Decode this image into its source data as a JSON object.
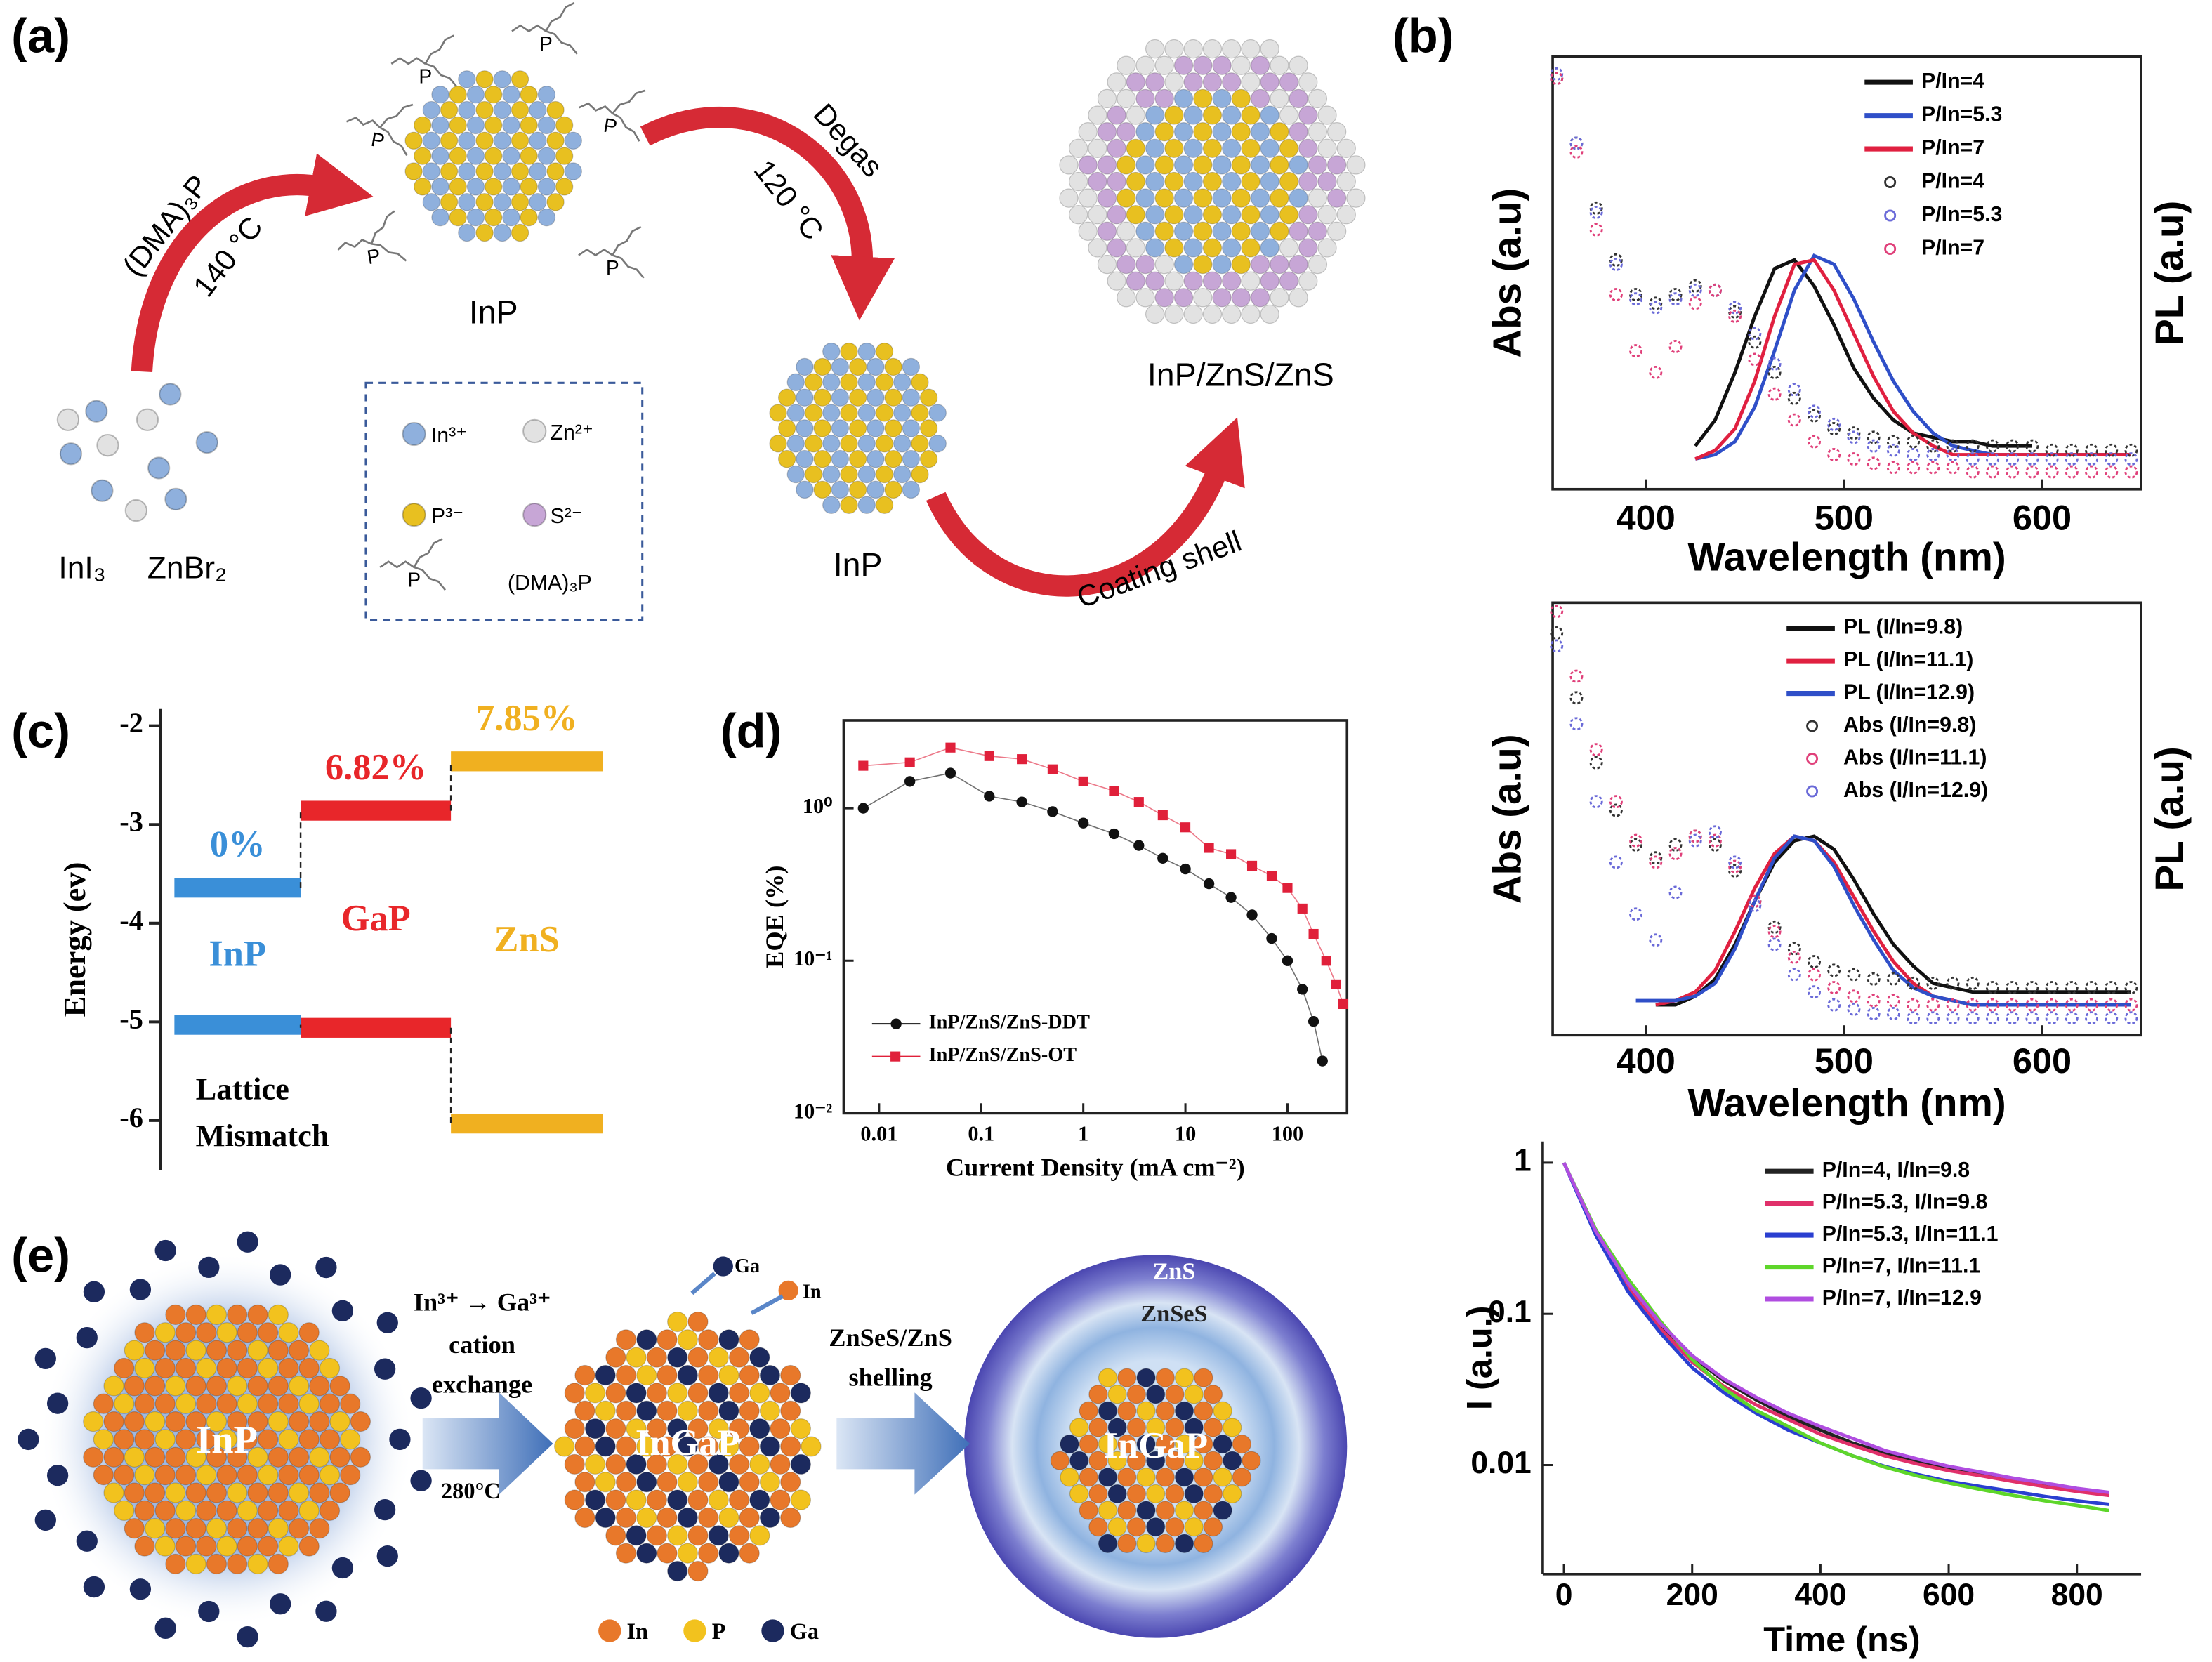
{
  "panels": {
    "a": "(a)",
    "b": "(b)",
    "c": "(c)",
    "d": "(d)",
    "e": "(e)"
  },
  "diagram_a": {
    "precursors": [
      "InI₃",
      "ZnBr₂"
    ],
    "reagent": "(DMA)₃P",
    "temperature_1": "140 °C",
    "core_label": "InP",
    "ligand": "P",
    "process": "Degas",
    "temperature_2": "120 °C",
    "purified_label": "InP",
    "step_3": "Coating shell",
    "product": "InP/ZnS/ZnS",
    "legend": [
      "In³⁺",
      "Zn²⁺",
      "P³⁻",
      "S²⁻",
      "(DMA)₃P"
    ]
  },
  "diagram_e": {
    "core": "InP",
    "step_1": [
      "In³⁺ → Ga³⁺",
      "cation",
      "exchange"
    ],
    "temperature": "280°C",
    "ions": [
      "Ga",
      "In"
    ],
    "alloy": "InGaP",
    "step_2": [
      "ZnSeS/ZnS",
      "shelling"
    ],
    "shells": [
      "ZnS",
      "ZnSeS"
    ],
    "product_core": "InGaP",
    "legend": [
      "In",
      "P",
      "Ga"
    ]
  },
  "chart_data": [
    {
      "type": "level",
      "y_label": "Energy (ev)",
      "ylim": [
        -6.5,
        -1.83
      ],
      "yticks": [
        -2,
        -3,
        -4,
        -5,
        -6
      ],
      "categories": [
        "InP",
        "GaP",
        "ZnS"
      ],
      "colors": [
        "#3a8fd8",
        "#e8262a",
        "#f0b020"
      ],
      "series": [
        {
          "values": [
            -3.64,
            -2.86,
            -2.36
          ]
        },
        {
          "values": [
            -5.03,
            -5.06,
            -6.03
          ]
        }
      ],
      "lattice_mismatch": [
        0,
        6.82,
        7.85
      ],
      "value_labels": [
        "0%",
        "6.82%",
        "7.85%"
      ],
      "annotation": [
        "Lattice",
        "Mismatch"
      ]
    },
    {
      "type": "scatter",
      "xlog": true,
      "ylog": true,
      "x_label": "Current Density (mA cm⁻²)",
      "y_label": "EQE (%)",
      "xlim": [
        0.0045,
        383
      ],
      "ylim": [
        0.01,
        3.77
      ],
      "xticks": [
        0.01,
        0.1,
        1,
        10,
        100
      ],
      "yticks": [
        {
          "value": 0.01,
          "label": "10⁻²"
        },
        {
          "value": 0.1,
          "label": "10⁻¹"
        },
        {
          "value": 1,
          "label": "10⁰"
        }
      ],
      "legend": "lower left",
      "series": [
        {
          "name": "InP/ZnS/ZnS-DDT",
          "color": "#111111",
          "marker": "circle",
          "x": [
            0.007,
            0.02,
            0.05,
            0.12,
            0.25,
            0.5,
            1,
            2,
            3.5,
            6,
            10,
            17,
            28,
            45,
            70,
            100,
            140,
            180,
            220
          ],
          "values": [
            1.0,
            1.5,
            1.7,
            1.2,
            1.1,
            0.95,
            0.8,
            0.68,
            0.57,
            0.47,
            0.4,
            0.32,
            0.26,
            0.2,
            0.14,
            0.1,
            0.065,
            0.04,
            0.022
          ]
        },
        {
          "name": "InP/ZnS/ZnS-OT",
          "color": "#e0203a",
          "marker": "square",
          "x": [
            0.007,
            0.02,
            0.05,
            0.12,
            0.25,
            0.5,
            1,
            2,
            3.5,
            6,
            10,
            17,
            28,
            45,
            70,
            100,
            140,
            180,
            240,
            300,
            350
          ],
          "values": [
            1.9,
            2.0,
            2.5,
            2.2,
            2.1,
            1.8,
            1.5,
            1.3,
            1.1,
            0.9,
            0.75,
            0.55,
            0.5,
            0.42,
            0.36,
            0.3,
            0.22,
            0.15,
            0.1,
            0.07,
            0.052
          ]
        }
      ]
    },
    {
      "type": "line",
      "x_label": "Wavelength (nm)",
      "y_label": "Abs (a.u)",
      "y2_label": "PL (a.u)",
      "xlim": [
        353,
        650
      ],
      "ylim": [
        0,
        1
      ],
      "xticks": [
        400,
        500,
        600
      ],
      "legend": "upper right",
      "x": [
        355,
        365,
        375,
        385,
        395,
        405,
        415,
        425,
        435,
        445,
        455,
        465,
        475,
        485,
        495,
        505,
        515,
        525,
        535,
        545,
        555,
        565,
        575,
        585,
        595,
        605,
        615,
        625,
        635,
        645
      ],
      "series": [
        {
          "name": "P/In=4",
          "color": "#111111",
          "marker": "line",
          "values": [
            null,
            null,
            null,
            null,
            null,
            null,
            null,
            0.1,
            0.16,
            0.27,
            0.4,
            0.51,
            0.53,
            0.47,
            0.38,
            0.28,
            0.21,
            0.16,
            0.13,
            0.12,
            0.11,
            0.11,
            0.1,
            0.1,
            0.1,
            null,
            null,
            null,
            null,
            null
          ]
        },
        {
          "name": "P/In=5.3",
          "color": "#2f4fc8",
          "marker": "line",
          "values": [
            null,
            null,
            null,
            null,
            null,
            null,
            null,
            0.07,
            0.08,
            0.11,
            0.19,
            0.32,
            0.46,
            0.54,
            0.52,
            0.44,
            0.34,
            0.25,
            0.18,
            0.13,
            0.1,
            0.09,
            0.08,
            0.08,
            0.08,
            0.08,
            0.08,
            0.08,
            0.08,
            0.08
          ]
        },
        {
          "name": "P/In=7",
          "color": "#e02040",
          "marker": "line",
          "values": [
            null,
            null,
            null,
            null,
            null,
            null,
            null,
            0.07,
            0.09,
            0.14,
            0.25,
            0.4,
            0.52,
            0.53,
            0.46,
            0.36,
            0.26,
            0.18,
            0.13,
            0.1,
            0.08,
            0.08,
            0.08,
            0.08,
            0.08,
            0.08,
            0.08,
            0.08,
            0.08,
            0.08
          ]
        },
        {
          "name": "P/In=4",
          "color": "#333333",
          "marker": "circle",
          "values": [
            0.95,
            0.8,
            0.65,
            0.53,
            0.45,
            0.43,
            0.45,
            0.47,
            0.46,
            0.41,
            0.34,
            0.27,
            0.21,
            0.17,
            0.14,
            0.13,
            0.12,
            0.11,
            0.11,
            0.1,
            0.1,
            0.1,
            0.1,
            0.1,
            0.1,
            0.09,
            0.09,
            0.09,
            0.09,
            0.09
          ]
        },
        {
          "name": "P/In=5.3",
          "color": "#6a6ad8",
          "marker": "circle",
          "values": [
            0.96,
            0.8,
            0.64,
            0.52,
            0.44,
            0.42,
            0.44,
            0.46,
            0.46,
            0.42,
            0.36,
            0.29,
            0.23,
            0.18,
            0.15,
            0.12,
            0.1,
            0.09,
            0.08,
            0.08,
            0.08,
            0.07,
            0.07,
            0.07,
            0.07,
            0.07,
            0.07,
            0.07,
            0.07,
            0.07
          ]
        },
        {
          "name": "P/In=7",
          "color": "#e0407a",
          "marker": "circle",
          "values": [
            0.95,
            0.78,
            0.6,
            0.45,
            0.32,
            0.27,
            0.33,
            0.43,
            0.46,
            0.4,
            0.3,
            0.22,
            0.16,
            0.11,
            0.08,
            0.07,
            0.06,
            0.05,
            0.05,
            0.05,
            0.05,
            0.04,
            0.04,
            0.04,
            0.04,
            0.04,
            0.04,
            0.04,
            0.04,
            0.04
          ]
        }
      ]
    },
    {
      "type": "line",
      "x_label": "Wavelength (nm)",
      "y_label": "Abs (a.u)",
      "y2_label": "PL (a.u)",
      "xlim": [
        353,
        650
      ],
      "ylim": [
        0,
        1
      ],
      "xticks": [
        400,
        500,
        600
      ],
      "legend": "upper right",
      "x": [
        355,
        365,
        375,
        385,
        395,
        405,
        415,
        425,
        435,
        445,
        455,
        465,
        475,
        485,
        495,
        505,
        515,
        525,
        535,
        545,
        555,
        565,
        575,
        585,
        595,
        605,
        615,
        625,
        635,
        645
      ],
      "series": [
        {
          "name": "PL (I/In=9.8)",
          "color": "#111111",
          "marker": "line",
          "values": [
            null,
            null,
            null,
            null,
            null,
            0.07,
            0.07,
            0.09,
            0.13,
            0.21,
            0.31,
            0.4,
            0.45,
            0.46,
            0.43,
            0.36,
            0.28,
            0.21,
            0.16,
            0.12,
            0.11,
            0.1,
            0.1,
            0.1,
            0.1,
            0.1,
            0.1,
            0.1,
            0.1,
            0.1
          ]
        },
        {
          "name": "PL (I/In=11.1)",
          "color": "#e02040",
          "marker": "line",
          "values": [
            null,
            null,
            null,
            null,
            null,
            0.07,
            0.08,
            0.1,
            0.15,
            0.24,
            0.34,
            0.42,
            0.46,
            0.45,
            0.4,
            0.32,
            0.24,
            0.17,
            0.12,
            0.09,
            0.08,
            0.07,
            0.07,
            0.07,
            0.07,
            0.07,
            0.07,
            0.07,
            0.07,
            0.07
          ]
        },
        {
          "name": "PL (I/In=12.9)",
          "color": "#2f4fc8",
          "marker": "line",
          "values": [
            null,
            null,
            null,
            null,
            0.08,
            0.08,
            0.08,
            0.09,
            0.12,
            0.2,
            0.31,
            0.41,
            0.46,
            0.45,
            0.39,
            0.3,
            0.22,
            0.15,
            0.11,
            0.09,
            0.08,
            0.07,
            0.07,
            0.07,
            0.07,
            0.07,
            0.07,
            0.07,
            0.07,
            0.07
          ]
        },
        {
          "name": "Abs (I/In=9.8)",
          "color": "#333333",
          "marker": "circle",
          "values": [
            0.93,
            0.78,
            0.63,
            0.52,
            0.44,
            0.41,
            0.44,
            0.46,
            0.44,
            0.38,
            0.31,
            0.25,
            0.2,
            0.17,
            0.15,
            0.14,
            0.13,
            0.13,
            0.12,
            0.12,
            0.12,
            0.12,
            0.11,
            0.11,
            0.11,
            0.11,
            0.11,
            0.11,
            0.11,
            0.11
          ]
        },
        {
          "name": "Abs (I/In=11.1)",
          "color": "#e0407a",
          "marker": "circle",
          "values": [
            0.98,
            0.83,
            0.66,
            0.54,
            0.45,
            0.4,
            0.42,
            0.46,
            0.45,
            0.39,
            0.31,
            0.24,
            0.18,
            0.14,
            0.11,
            0.09,
            0.08,
            0.08,
            0.07,
            0.07,
            0.07,
            0.07,
            0.07,
            0.07,
            0.07,
            0.07,
            0.07,
            0.07,
            0.07,
            0.07
          ]
        },
        {
          "name": "Abs (I/In=12.9)",
          "color": "#6a6ad8",
          "marker": "circle",
          "values": [
            0.9,
            0.72,
            0.54,
            0.4,
            0.28,
            0.22,
            0.33,
            0.45,
            0.47,
            0.4,
            0.3,
            0.21,
            0.14,
            0.1,
            0.07,
            0.06,
            0.05,
            0.05,
            0.04,
            0.04,
            0.04,
            0.04,
            0.04,
            0.04,
            0.04,
            0.04,
            0.04,
            0.04,
            0.04,
            0.04
          ]
        }
      ]
    },
    {
      "type": "line",
      "ylog": true,
      "x_label": "Time (ns)",
      "y_label": "I (a.u.)",
      "xlim": [
        -33,
        900
      ],
      "ylim": [
        0.0019,
        1.38
      ],
      "xticks": [
        0,
        200,
        400,
        600,
        800
      ],
      "yticks": [
        1,
        0.1,
        0.01
      ],
      "legend": "upper right",
      "x": [
        0,
        50,
        100,
        150,
        200,
        250,
        300,
        350,
        400,
        450,
        500,
        550,
        600,
        650,
        700,
        750,
        800,
        850
      ],
      "series": [
        {
          "name": "P/In=4, I/In=9.8",
          "color": "#222222",
          "marker": "line",
          "values": [
            1,
            0.35,
            0.16,
            0.085,
            0.052,
            0.036,
            0.027,
            0.021,
            0.017,
            0.014,
            0.012,
            0.0105,
            0.0095,
            0.0087,
            0.008,
            0.0074,
            0.0069,
            0.0065
          ]
        },
        {
          "name": "P/In=5.3, I/In=9.8",
          "color": "#e0306a",
          "marker": "line",
          "values": [
            1,
            0.34,
            0.15,
            0.08,
            0.048,
            0.033,
            0.025,
            0.02,
            0.016,
            0.0135,
            0.0115,
            0.0102,
            0.0092,
            0.0085,
            0.0078,
            0.0072,
            0.0067,
            0.0063
          ]
        },
        {
          "name": "P/In=5.3, I/In=11.1",
          "color": "#2a3fd0",
          "marker": "line",
          "values": [
            1,
            0.33,
            0.14,
            0.075,
            0.044,
            0.03,
            0.022,
            0.017,
            0.014,
            0.0115,
            0.0098,
            0.0087,
            0.0078,
            0.0072,
            0.0067,
            0.0062,
            0.0058,
            0.0055
          ]
        },
        {
          "name": "P/In=7, I/In=11.1",
          "color": "#5ed62a",
          "marker": "line",
          "values": [
            1,
            0.36,
            0.17,
            0.09,
            0.05,
            0.032,
            0.023,
            0.018,
            0.014,
            0.0115,
            0.0097,
            0.0085,
            0.0076,
            0.0069,
            0.0063,
            0.0058,
            0.0054,
            0.005
          ]
        },
        {
          "name": "P/In=7, I/In=12.9",
          "color": "#b04de0",
          "marker": "line",
          "values": [
            1,
            0.35,
            0.16,
            0.087,
            0.053,
            0.037,
            0.028,
            0.022,
            0.018,
            0.015,
            0.0125,
            0.011,
            0.0098,
            0.009,
            0.0082,
            0.0076,
            0.007,
            0.0066
          ]
        }
      ]
    }
  ]
}
